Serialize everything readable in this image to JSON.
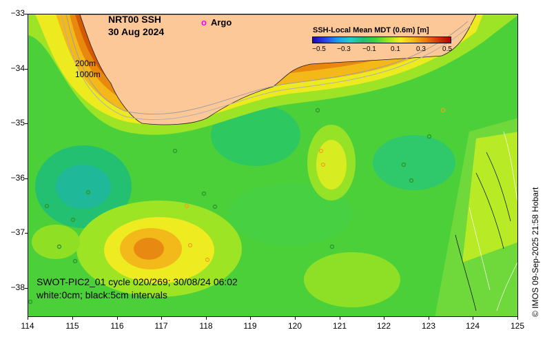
{
  "title": {
    "line1": "NRT00 SSH",
    "line2": "30 Aug 2024"
  },
  "argo": {
    "marker": "o",
    "label": "Argo",
    "marker_color": "#ff00ff"
  },
  "contour_labels": {
    "line1": "200m",
    "line2": "1000m"
  },
  "legend": {
    "title": "SSH-Local Mean MDT (0.6m) [m]",
    "ticks": [
      "−0.5",
      "−0.3",
      "−0.1",
      "0.1",
      "0.3",
      "0.5"
    ]
  },
  "swot_caption": {
    "line1": "SWOT-PIC2_01 cycle 020/269; 30/08/24 06:02",
    "line2": "white:0cm; black:5cm intervals"
  },
  "credit": "© IMOS 09-Sep-2025 21:58 Hobart",
  "axes": {
    "lon_ticks": [
      "114",
      "115",
      "116",
      "117",
      "118",
      "119",
      "120",
      "121",
      "122",
      "123",
      "124",
      "125"
    ],
    "lat_ticks": [
      "−33",
      "−34",
      "−35",
      "−36",
      "−37",
      "−38"
    ]
  },
  "colors": {
    "land": "#fdc898",
    "coast_high": "#d45a00",
    "mid_green": "#4cd03a"
  }
}
